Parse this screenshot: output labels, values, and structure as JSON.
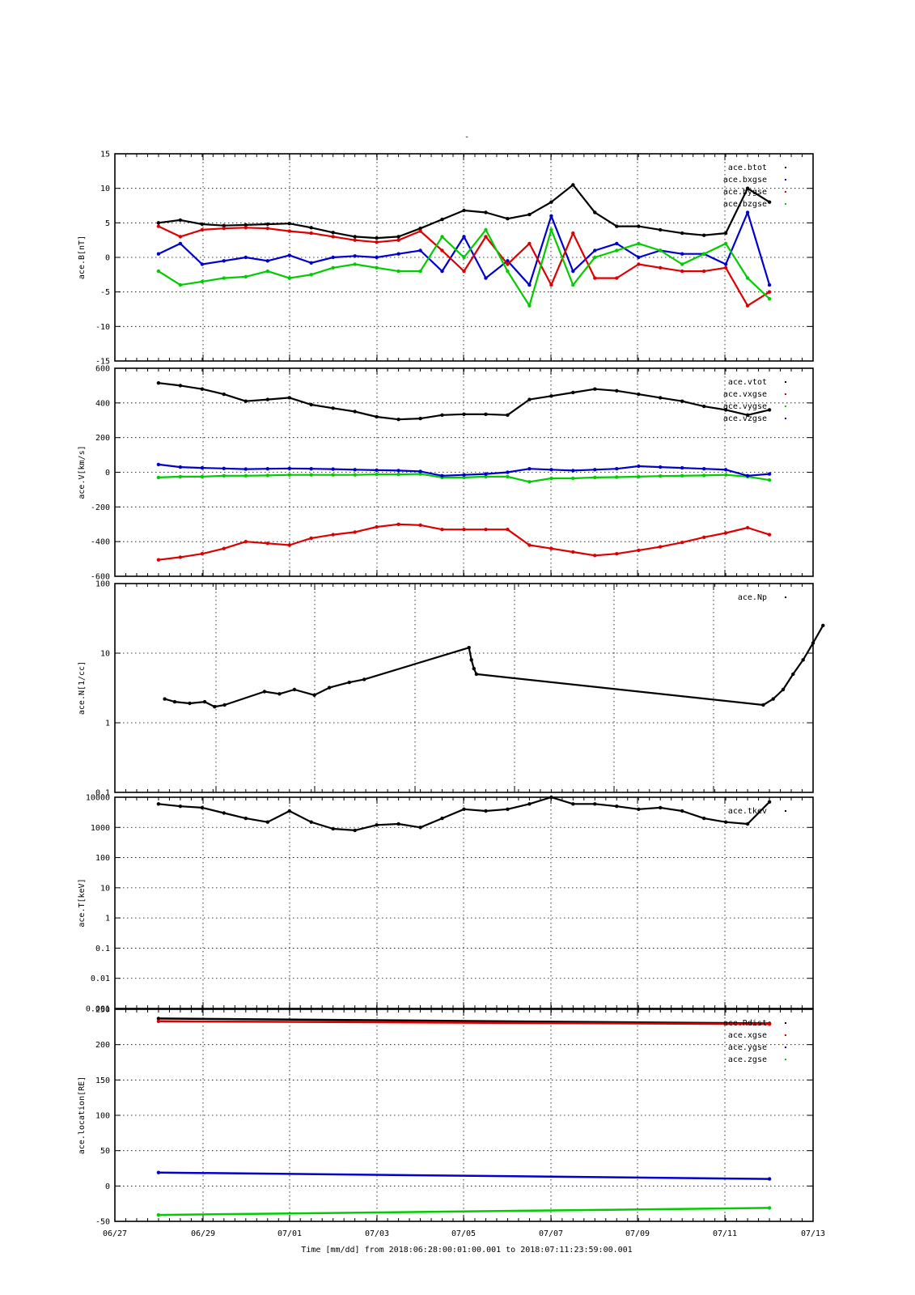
{
  "chart": {
    "title": "-",
    "xlabel": "Time [mm/dd]  from 2018:06:28:00:01:00.001  to  2018:07:11:23:59:00.001",
    "x_ticks": [
      "06/27",
      "06/29",
      "07/01",
      "07/03",
      "07/05",
      "07/07",
      "07/09",
      "07/11",
      "07/13"
    ]
  },
  "chart_data": [
    {
      "type": "scatter",
      "ylabel": "ace.B[nT]",
      "ylim": [
        -15,
        15
      ],
      "yscale": "linear",
      "y_ticks": [
        "15",
        "10",
        "5",
        "0",
        "-5",
        "-10",
        "-15"
      ],
      "legend_position": "top-right",
      "x_unit": "day",
      "xlim": [
        0,
        16
      ],
      "series": [
        {
          "name": "ace.btot",
          "color": "#000000",
          "x": [
            1.0,
            1.5,
            2.0,
            2.5,
            3.0,
            3.5,
            4.0,
            4.5,
            5.0,
            5.5,
            6.0,
            6.5,
            7.0,
            7.5,
            8.0,
            8.5,
            9.0,
            9.5,
            10.0,
            10.5,
            11.0,
            11.5,
            12.0,
            12.5,
            13.0,
            13.5,
            14.0,
            14.5,
            15.0
          ],
          "y": [
            5,
            5.4,
            4.8,
            4.6,
            4.7,
            4.8,
            4.9,
            4.3,
            3.6,
            3.0,
            2.8,
            3.0,
            4.2,
            5.5,
            6.8,
            6.5,
            5.6,
            6.2,
            8.0,
            10.5,
            6.5,
            4.5,
            4.5,
            4.0,
            3.5,
            3.2,
            3.5,
            10.0,
            8.0
          ]
        },
        {
          "name": "ace.bxgse",
          "color": "#0000cc",
          "x": [
            1.0,
            1.5,
            2.0,
            2.5,
            3.0,
            3.5,
            4.0,
            4.5,
            5.0,
            5.5,
            6.0,
            6.5,
            7.0,
            7.5,
            8.0,
            8.5,
            9.0,
            9.5,
            10.0,
            10.5,
            11.0,
            11.5,
            12.0,
            12.5,
            13.0,
            13.5,
            14.0,
            14.5,
            15.0
          ],
          "y": [
            0.5,
            2.0,
            -1.0,
            -0.5,
            0.0,
            -0.5,
            0.3,
            -0.8,
            0.0,
            0.2,
            0.0,
            0.5,
            1.0,
            -2.0,
            3.0,
            -3.0,
            -0.5,
            -4.0,
            6.0,
            -2.0,
            1.0,
            2.0,
            0.0,
            1.0,
            0.5,
            0.5,
            -1.0,
            6.5,
            -4.0
          ]
        },
        {
          "name": "ace.bygse",
          "color": "#dd0000",
          "x": [
            1.0,
            1.5,
            2.0,
            2.5,
            3.0,
            3.5,
            4.0,
            4.5,
            5.0,
            5.5,
            6.0,
            6.5,
            7.0,
            7.5,
            8.0,
            8.5,
            9.0,
            9.5,
            10.0,
            10.5,
            11.0,
            11.5,
            12.0,
            12.5,
            13.0,
            13.5,
            14.0,
            14.5,
            15.0
          ],
          "y": [
            4.5,
            3.0,
            4.0,
            4.2,
            4.3,
            4.2,
            3.8,
            3.5,
            3.0,
            2.5,
            2.2,
            2.5,
            3.8,
            1.0,
            -2.0,
            3.0,
            -1.0,
            2.0,
            -4.0,
            3.5,
            -3.0,
            -3.0,
            -1.0,
            -1.5,
            -2.0,
            -2.0,
            -1.5,
            -7.0,
            -5.0
          ]
        },
        {
          "name": "ace.bzgse",
          "color": "#00cc00",
          "x": [
            1.0,
            1.5,
            2.0,
            2.5,
            3.0,
            3.5,
            4.0,
            4.5,
            5.0,
            5.5,
            6.0,
            6.5,
            7.0,
            7.5,
            8.0,
            8.5,
            9.0,
            9.5,
            10.0,
            10.5,
            11.0,
            11.5,
            12.0,
            12.5,
            13.0,
            13.5,
            14.0,
            14.5,
            15.0
          ],
          "y": [
            -2.0,
            -4.0,
            -3.5,
            -3.0,
            -2.8,
            -2.0,
            -3.0,
            -2.5,
            -1.5,
            -1.0,
            -1.5,
            -2.0,
            -2.0,
            3.0,
            0.0,
            4.0,
            -2.0,
            -7.0,
            4.0,
            -4.0,
            0.0,
            1.0,
            2.0,
            1.0,
            -1.0,
            0.5,
            2.0,
            -3.0,
            -6.0
          ]
        }
      ]
    },
    {
      "type": "scatter",
      "ylabel": "ace.V[km/s]",
      "ylim": [
        -600,
        600
      ],
      "yscale": "linear",
      "y_ticks": [
        "600",
        "400",
        "200",
        "0",
        "-200",
        "-400",
        "-600"
      ],
      "legend_position": "top-right",
      "x_unit": "day",
      "xlim": [
        0,
        16
      ],
      "series": [
        {
          "name": "ace.vtot",
          "color": "#000000",
          "x": [
            1.0,
            1.5,
            2.0,
            2.5,
            3.0,
            3.5,
            4.0,
            4.5,
            5.0,
            5.5,
            6.0,
            6.5,
            7.0,
            7.5,
            8.0,
            8.5,
            9.0,
            9.5,
            10.0,
            10.5,
            11.0,
            11.5,
            12.0,
            12.5,
            13.0,
            13.5,
            14.0,
            14.5,
            15.0
          ],
          "y": [
            515,
            500,
            480,
            450,
            410,
            420,
            430,
            390,
            370,
            350,
            320,
            305,
            310,
            330,
            335,
            335,
            330,
            420,
            440,
            460,
            480,
            470,
            450,
            430,
            410,
            380,
            360,
            330,
            360
          ]
        },
        {
          "name": "ace.vxgse",
          "color": "#dd0000",
          "x": [
            1.0,
            1.5,
            2.0,
            2.5,
            3.0,
            3.5,
            4.0,
            4.5,
            5.0,
            5.5,
            6.0,
            6.5,
            7.0,
            7.5,
            8.0,
            8.5,
            9.0,
            9.5,
            10.0,
            10.5,
            11.0,
            11.5,
            12.0,
            12.5,
            13.0,
            13.5,
            14.0,
            14.5,
            15.0
          ],
          "y": [
            -505,
            -490,
            -470,
            -440,
            -400,
            -410,
            -420,
            -380,
            -360,
            -345,
            -315,
            -300,
            -305,
            -330,
            -330,
            -330,
            -330,
            -420,
            -440,
            -460,
            -480,
            -470,
            -450,
            -430,
            -405,
            -375,
            -350,
            -320,
            -360
          ]
        },
        {
          "name": "ace.vygse",
          "color": "#00cc00",
          "x": [
            1.0,
            1.5,
            2.0,
            2.5,
            3.0,
            3.5,
            4.0,
            4.5,
            5.0,
            5.5,
            6.0,
            6.5,
            7.0,
            7.5,
            8.0,
            8.5,
            9.0,
            9.5,
            10.0,
            10.5,
            11.0,
            11.5,
            12.0,
            12.5,
            13.0,
            13.5,
            14.0,
            14.5,
            15.0
          ],
          "y": [
            -30,
            -25,
            -25,
            -20,
            -20,
            -18,
            -15,
            -15,
            -15,
            -15,
            -12,
            -12,
            -10,
            -30,
            -30,
            -25,
            -25,
            -55,
            -35,
            -35,
            -30,
            -28,
            -25,
            -22,
            -20,
            -18,
            -15,
            -25,
            -45
          ]
        },
        {
          "name": "ace.vzgse",
          "color": "#0000cc",
          "x": [
            1.0,
            1.5,
            2.0,
            2.5,
            3.0,
            3.5,
            4.0,
            4.5,
            5.0,
            5.5,
            6.0,
            6.5,
            7.0,
            7.5,
            8.0,
            8.5,
            9.0,
            9.5,
            10.0,
            10.5,
            11.0,
            11.5,
            12.0,
            12.5,
            13.0,
            13.5,
            14.0,
            14.5,
            15.0
          ],
          "y": [
            45,
            30,
            25,
            22,
            18,
            20,
            22,
            20,
            18,
            15,
            12,
            10,
            5,
            -20,
            -15,
            -10,
            0,
            20,
            15,
            10,
            15,
            20,
            35,
            30,
            25,
            20,
            15,
            -20,
            -10
          ]
        }
      ]
    },
    {
      "type": "scatter",
      "ylabel": "ace.N[1/cc]",
      "ylim": [
        0.1,
        100
      ],
      "yscale": "log",
      "y_ticks": [
        "100",
        "10",
        "1",
        "0.1"
      ],
      "legend_position": "top-right",
      "x_unit": "day",
      "xlim": [
        0,
        14
      ],
      "series": [
        {
          "name": "ace.Np",
          "color": "#000000",
          "x": [
            1.0,
            1.2,
            1.5,
            1.8,
            2.0,
            2.2,
            3.0,
            3.3,
            3.6,
            4.0,
            4.3,
            4.7,
            5.0,
            7.1,
            7.15,
            7.2,
            7.25,
            13.0,
            13.2,
            13.4,
            13.6,
            13.8,
            14.0,
            14.2
          ],
          "y": [
            2.2,
            2.0,
            1.9,
            2.0,
            1.7,
            1.8,
            2.8,
            2.6,
            3.0,
            2.5,
            3.2,
            3.8,
            4.2,
            12.0,
            8.0,
            6.0,
            5.0,
            1.8,
            2.2,
            3.0,
            5.0,
            8.0,
            14.0,
            25.0
          ]
        }
      ]
    },
    {
      "type": "scatter",
      "ylabel": "ace.T[keV]",
      "ylim": [
        0.001,
        10000
      ],
      "yscale": "log",
      "y_ticks": [
        "10000",
        "1000",
        "100",
        "10",
        "1",
        "0.1",
        "0.01",
        "0.001"
      ],
      "legend_position": "top-right",
      "x_unit": "day",
      "xlim": [
        0,
        16
      ],
      "series": [
        {
          "name": "ace.tkev",
          "color": "#000000",
          "x": [
            1.0,
            1.5,
            2.0,
            2.5,
            3.0,
            3.5,
            4.0,
            4.5,
            5.0,
            5.5,
            6.0,
            6.5,
            7.0,
            7.5,
            8.0,
            8.5,
            9.0,
            9.5,
            10.0,
            10.5,
            11.0,
            11.5,
            12.0,
            12.5,
            13.0,
            13.5,
            14.0,
            14.5,
            15.0
          ],
          "y": [
            6000,
            5000,
            4500,
            3000,
            2000,
            1500,
            3500,
            1500,
            900,
            800,
            1200,
            1300,
            1000,
            2000,
            4000,
            3500,
            4000,
            6000,
            10000,
            6000,
            6000,
            5000,
            4000,
            4500,
            3500,
            2000,
            1500,
            1300,
            7000
          ]
        }
      ]
    },
    {
      "type": "scatter",
      "ylabel": "ace.location[RE]",
      "ylim": [
        -50,
        250
      ],
      "yscale": "linear",
      "y_ticks": [
        "250",
        "200",
        "150",
        "100",
        "50",
        "0",
        "-50"
      ],
      "legend_position": "top-right",
      "x_unit": "day",
      "xlim": [
        0,
        16
      ],
      "series": [
        {
          "name": "ace.Rdist",
          "color": "#000000",
          "x": [
            1.0,
            15.0
          ],
          "y": [
            237,
            230
          ]
        },
        {
          "name": "ace.xgse",
          "color": "#dd0000",
          "x": [
            1.0,
            15.0
          ],
          "y": [
            233,
            229
          ]
        },
        {
          "name": "ace.ygse",
          "color": "#0000cc",
          "x": [
            1.0,
            15.0
          ],
          "y": [
            19,
            10
          ]
        },
        {
          "name": "ace.zgse",
          "color": "#00cc00",
          "x": [
            1.0,
            15.0
          ],
          "y": [
            -41,
            -31
          ]
        }
      ]
    }
  ]
}
